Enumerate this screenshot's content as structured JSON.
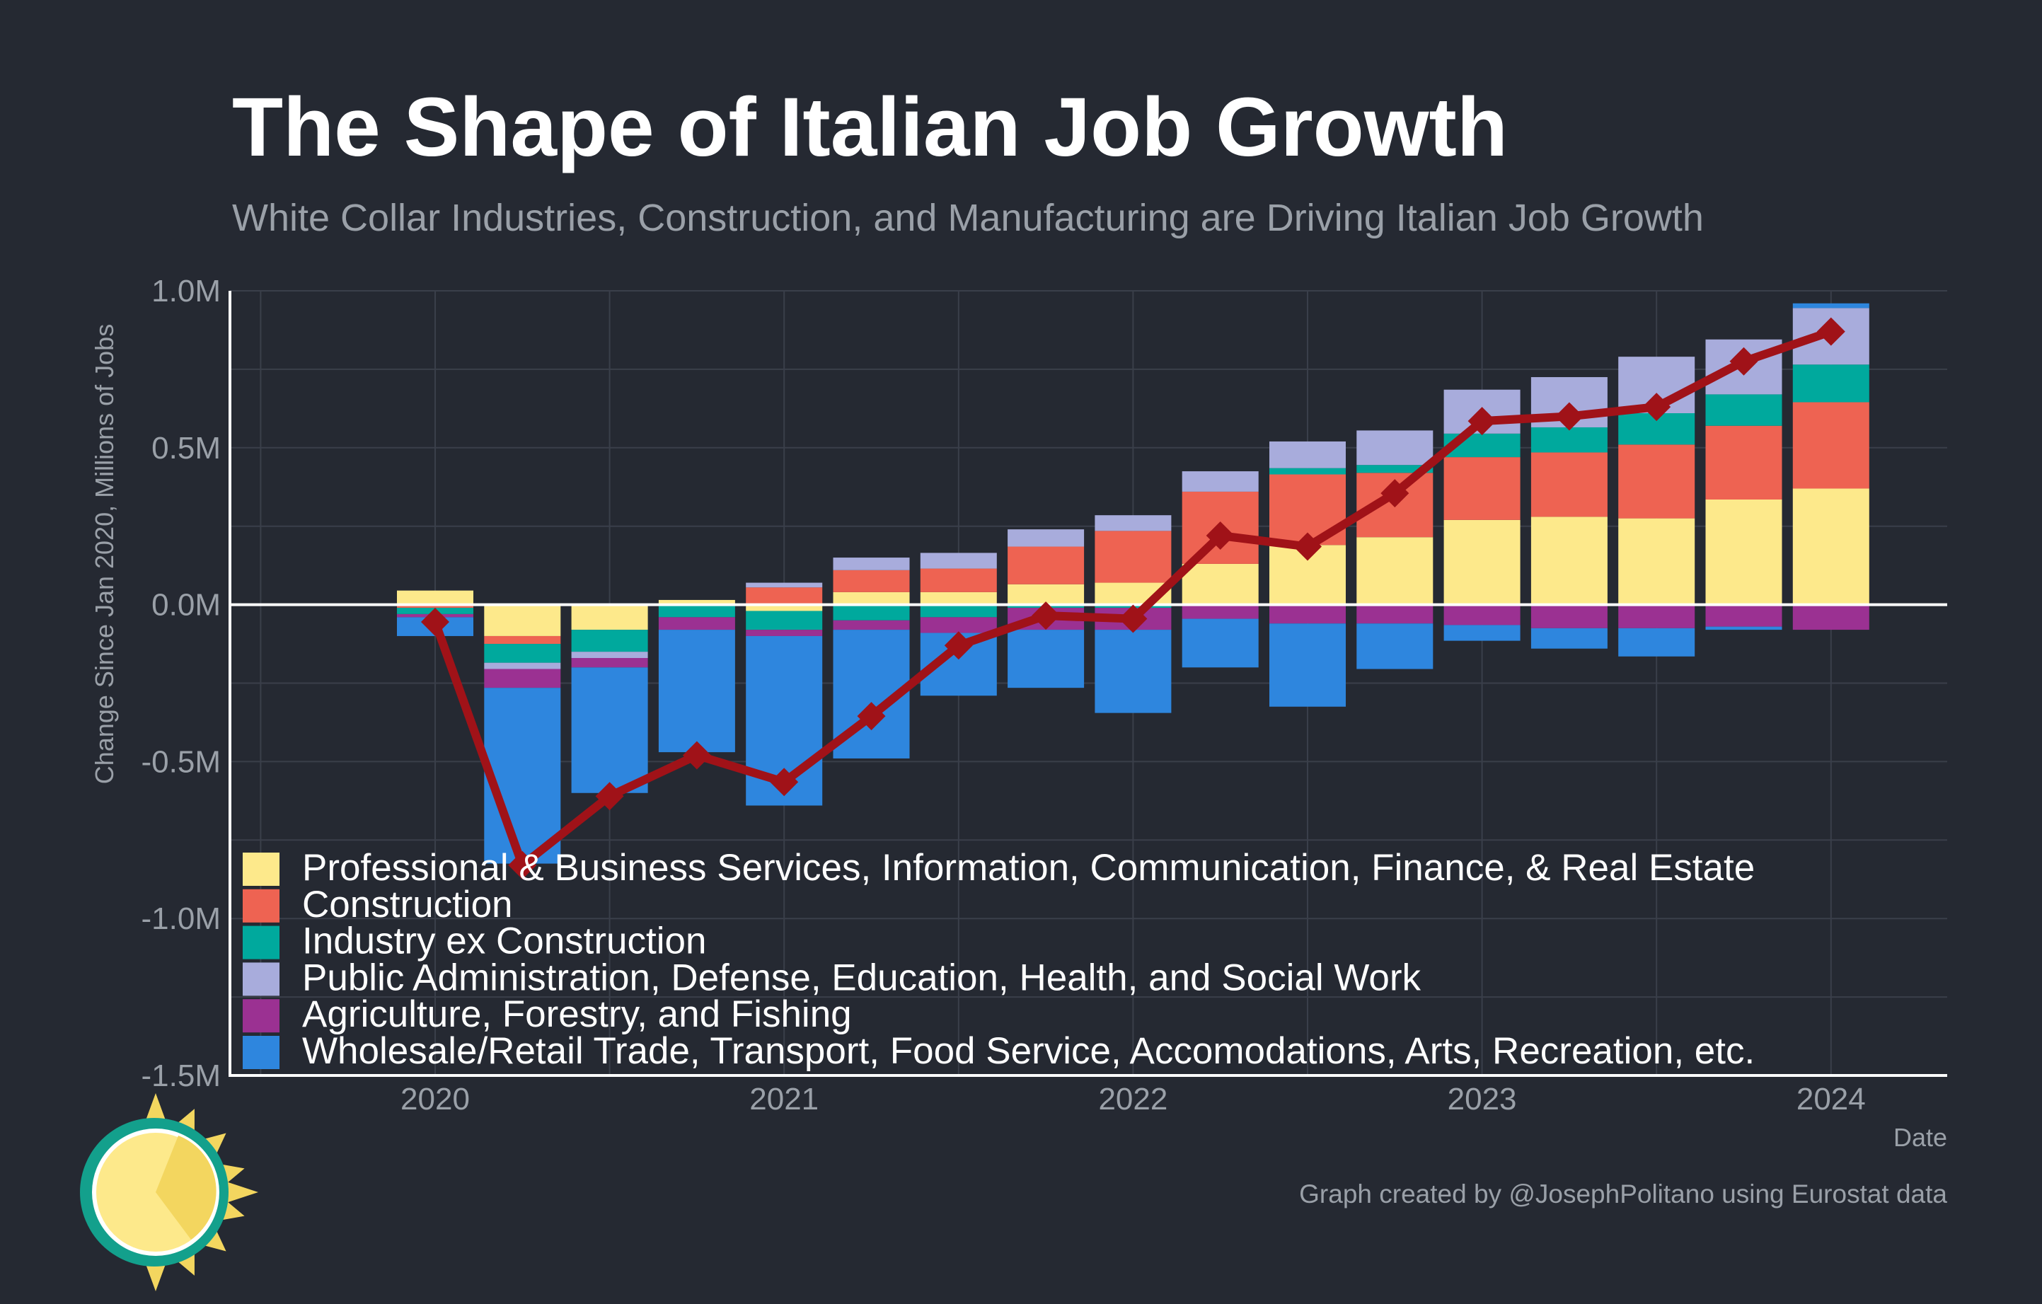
{
  "title": "The Shape of Italian Job Growth",
  "subtitle": "White Collar Industries, Construction, and Manufacturing are Driving Italian Job Growth",
  "caption": "Graph created by @JosephPolitano using Eurostat data",
  "chart_data": {
    "type": "bar",
    "stacked": true,
    "ylabel": "Change Since Jan 2020, Millions of Jobs",
    "xlabel": "Date",
    "ylim": [
      -1.5,
      1.0
    ],
    "y_ticks": [
      1.0,
      0.5,
      0.0,
      -0.5,
      -1.0,
      -1.5
    ],
    "y_tick_labels": [
      "1.0M",
      "0.5M",
      "0.0M",
      "-0.5M",
      "-1.0M",
      "-1.5M"
    ],
    "x_ticks": [
      "2020",
      "2021",
      "2022",
      "2023",
      "2024"
    ],
    "grid": true,
    "legend_position": "bottom-left",
    "categories": [
      "2020-Q1",
      "2020-Q2",
      "2020-Q3",
      "2020-Q4",
      "2021-Q1",
      "2021-Q2",
      "2021-Q3",
      "2021-Q4",
      "2022-Q1",
      "2022-Q2",
      "2022-Q3",
      "2022-Q4",
      "2023-Q1",
      "2023-Q2",
      "2023-Q3",
      "2023-Q4",
      "2024-Q1"
    ],
    "series": [
      {
        "name": "Professional & Business Services, Information, Communication, Finance, & Real Estate",
        "color": "#fde98b",
        "values": [
          0.045,
          -0.1,
          -0.08,
          0.015,
          -0.02,
          0.04,
          0.04,
          0.065,
          0.07,
          0.13,
          0.19,
          0.215,
          0.27,
          0.28,
          0.275,
          0.335,
          0.37
        ]
      },
      {
        "name": "Construction",
        "color": "#ee6352",
        "values": [
          -0.01,
          -0.025,
          0.0,
          0.0,
          0.055,
          0.07,
          0.075,
          0.12,
          0.165,
          0.23,
          0.225,
          0.205,
          0.2,
          0.205,
          0.235,
          0.235,
          0.275
        ]
      },
      {
        "name": "Industry ex Construction",
        "color": "#00a99d",
        "values": [
          -0.02,
          -0.06,
          -0.07,
          -0.04,
          -0.06,
          -0.05,
          -0.04,
          -0.01,
          -0.01,
          0.0,
          0.02,
          0.025,
          0.075,
          0.08,
          0.1,
          0.1,
          0.12
        ]
      },
      {
        "name": "Public Administration, Defense, Education, Health, and Social Work",
        "color": "#a8acdc",
        "values": [
          0.0,
          -0.02,
          -0.02,
          0.0,
          0.015,
          0.04,
          0.05,
          0.055,
          0.05,
          0.065,
          0.085,
          0.11,
          0.14,
          0.16,
          0.18,
          0.175,
          0.18
        ]
      },
      {
        "name": "Agriculture, Forestry, and Fishing",
        "color": "#9b3192",
        "values": [
          -0.01,
          -0.06,
          -0.03,
          -0.04,
          -0.02,
          -0.03,
          -0.05,
          -0.07,
          -0.07,
          -0.045,
          -0.06,
          -0.06,
          -0.065,
          -0.075,
          -0.075,
          -0.07,
          -0.08
        ]
      },
      {
        "name": "Wholesale/Retail Trade, Transport, Food Service, Accomodations, Arts, Recreation, etc.",
        "color": "#2e86de",
        "values": [
          -0.06,
          -0.56,
          -0.4,
          -0.39,
          -0.54,
          -0.41,
          -0.2,
          -0.185,
          -0.265,
          -0.155,
          -0.265,
          -0.145,
          -0.05,
          -0.065,
          -0.09,
          -0.01,
          0.015
        ]
      }
    ],
    "total": {
      "name": "Total",
      "color": "#a01218",
      "values": [
        -0.055,
        -0.83,
        -0.61,
        -0.48,
        -0.565,
        -0.355,
        -0.13,
        -0.035,
        -0.045,
        0.22,
        0.185,
        0.355,
        0.585,
        0.6,
        0.63,
        0.775,
        0.87
      ]
    }
  },
  "colors": {
    "background": "#252932",
    "grid": "#3a3f4a",
    "axis": "#ffffff",
    "logo_ring": "#13a08c",
    "logo_sun": "#fde98b",
    "logo_sun_shade": "#f3d65f"
  },
  "icons": {
    "logo": "sun-logo-icon"
  }
}
